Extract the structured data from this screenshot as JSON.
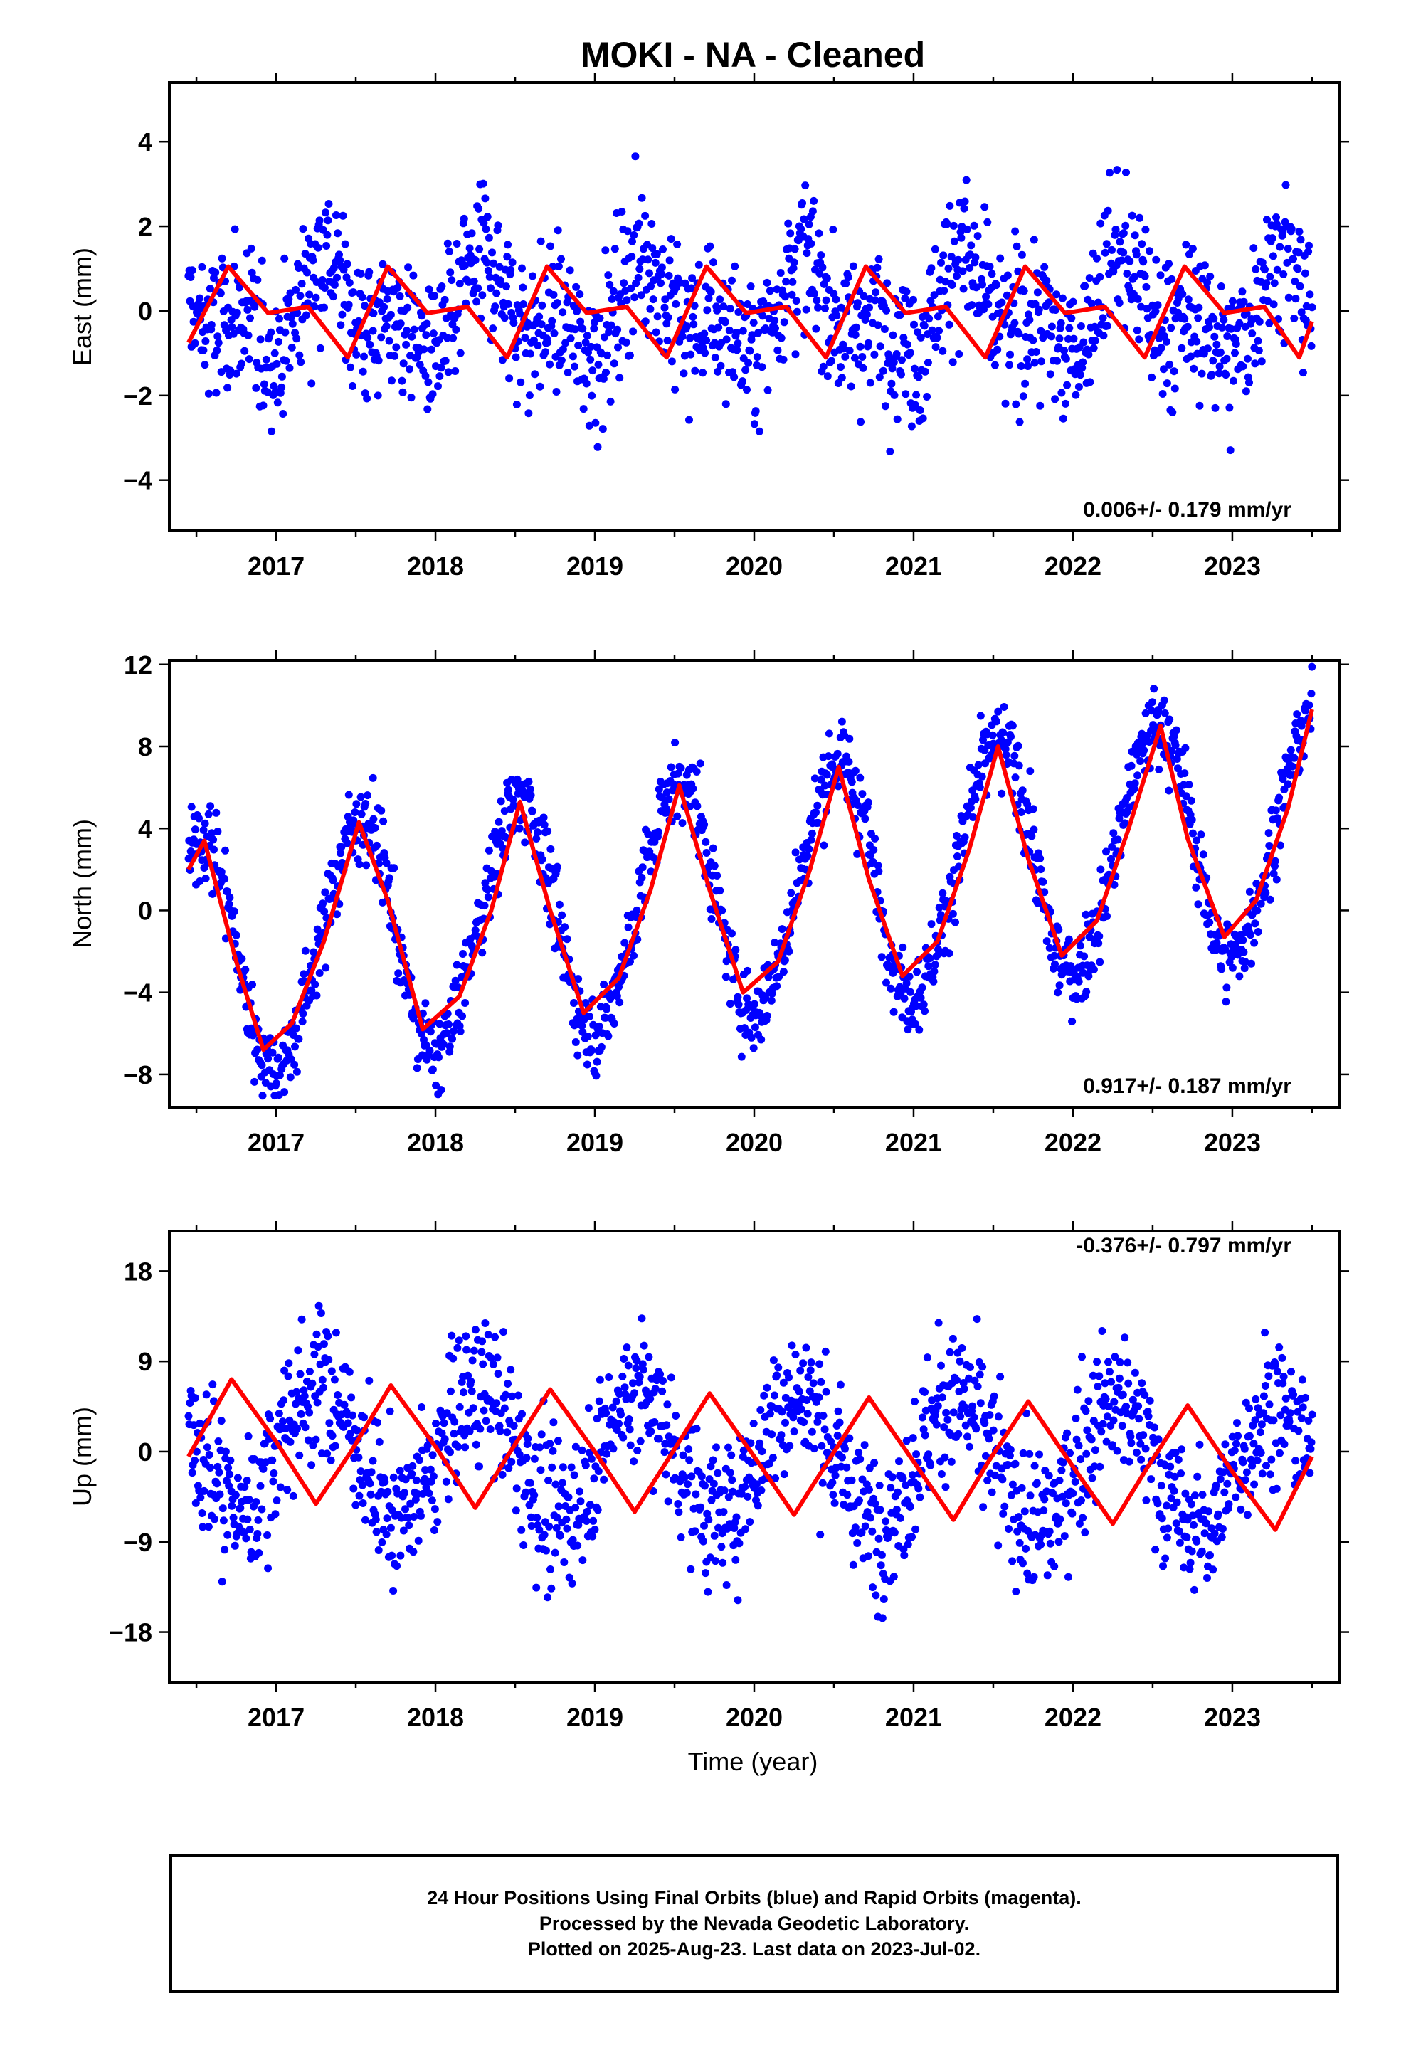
{
  "title": "MOKI  - NA - Cleaned",
  "xlabel": "Time (year)",
  "colors": {
    "final_orbits": "#0000ff",
    "model_fit": "#ff0000",
    "frame": "#000000"
  },
  "footer": {
    "line1": "24 Hour Positions Using Final Orbits (blue) and Rapid Orbits (magenta).",
    "line2": "Processed by the Nevada Geodetic Laboratory.",
    "line3": "Plotted on 2025-Aug-23. Last data on 2023-Jul-02."
  },
  "chart_data": [
    {
      "type": "scatter",
      "panel": "east",
      "ylabel": "East (mm)",
      "rate_text": "0.006+/- 0.179 mm/yr",
      "xlim": [
        2016.33,
        2023.67
      ],
      "ylim": [
        -5.2,
        5.4
      ],
      "xticks": [
        2017,
        2018,
        2019,
        2020,
        2021,
        2022,
        2023
      ],
      "yticks": [
        -4,
        -2,
        0,
        2,
        4
      ],
      "series": [
        {
          "role": "daily positions",
          "marker": "dot",
          "x_start": 2016.45,
          "x_end": 2023.5,
          "trend": {
            "ref_year": 2020.0,
            "offset": 0.0,
            "rate": 0.006
          },
          "annual": [
            0.7,
            -0.4
          ],
          "semiannual": [
            -0.2,
            -0.55
          ],
          "scatter_sd": 0.9
        },
        {
          "role": "model fit",
          "line": true,
          "points": [
            [
              2016.45,
              -0.75
            ],
            [
              2016.7,
              1.05
            ],
            [
              2016.95,
              -0.05
            ],
            [
              2017.2,
              0.1
            ],
            [
              2017.45,
              -1.1
            ],
            [
              2017.7,
              1.05
            ],
            [
              2017.95,
              -0.05
            ],
            [
              2018.2,
              0.1
            ],
            [
              2018.45,
              -1.1
            ],
            [
              2018.7,
              1.05
            ],
            [
              2018.95,
              -0.05
            ],
            [
              2019.2,
              0.1
            ],
            [
              2019.45,
              -1.1
            ],
            [
              2019.7,
              1.05
            ],
            [
              2019.95,
              -0.05
            ],
            [
              2020.2,
              0.1
            ],
            [
              2020.45,
              -1.1
            ],
            [
              2020.7,
              1.05
            ],
            [
              2020.95,
              -0.05
            ],
            [
              2021.2,
              0.1
            ],
            [
              2021.45,
              -1.1
            ],
            [
              2021.7,
              1.05
            ],
            [
              2021.95,
              -0.05
            ],
            [
              2022.2,
              0.1
            ],
            [
              2022.45,
              -1.1
            ],
            [
              2022.7,
              1.05
            ],
            [
              2022.95,
              -0.05
            ],
            [
              2023.2,
              0.1
            ],
            [
              2023.42,
              -1.1
            ],
            [
              2023.5,
              -0.25
            ]
          ]
        }
      ]
    },
    {
      "type": "scatter",
      "panel": "north",
      "ylabel": "North (mm)",
      "rate_text": "0.917+/- 0.187 mm/yr",
      "xlim": [
        2016.33,
        2023.67
      ],
      "ylim": [
        -9.6,
        12.2
      ],
      "xticks": [
        2017,
        2018,
        2019,
        2020,
        2021,
        2022,
        2023
      ],
      "yticks": [
        -8,
        -4,
        0,
        4,
        8,
        12
      ],
      "series": [
        {
          "role": "daily positions",
          "marker": "dot",
          "x_start": 2016.45,
          "x_end": 2023.5,
          "trend": {
            "ref_year": 2020.0,
            "offset": 0.8,
            "rate": 0.917
          },
          "annual": [
            -0.5,
            -5.8
          ],
          "semiannual": [
            0.4,
            0.0
          ],
          "scatter_sd": 1.0
        },
        {
          "role": "model fit",
          "line": true,
          "points": [
            [
              2016.45,
              2.0
            ],
            [
              2016.55,
              3.4
            ],
            [
              2016.75,
              -2.5
            ],
            [
              2016.92,
              -6.8
            ],
            [
              2017.1,
              -5.5
            ],
            [
              2017.3,
              -1.5
            ],
            [
              2017.52,
              4.3
            ],
            [
              2017.7,
              0.5
            ],
            [
              2017.92,
              -5.8
            ],
            [
              2018.15,
              -4.2
            ],
            [
              2018.35,
              0.0
            ],
            [
              2018.53,
              5.3
            ],
            [
              2018.72,
              0.0
            ],
            [
              2018.93,
              -5.0
            ],
            [
              2019.15,
              -3.3
            ],
            [
              2019.35,
              1.0
            ],
            [
              2019.53,
              6.1
            ],
            [
              2019.72,
              1.0
            ],
            [
              2019.93,
              -4.0
            ],
            [
              2020.15,
              -2.5
            ],
            [
              2020.35,
              2.0
            ],
            [
              2020.53,
              7.0
            ],
            [
              2020.72,
              1.5
            ],
            [
              2020.93,
              -3.2
            ],
            [
              2021.15,
              -1.5
            ],
            [
              2021.35,
              3.0
            ],
            [
              2021.53,
              8.0
            ],
            [
              2021.72,
              2.5
            ],
            [
              2021.93,
              -2.2
            ],
            [
              2022.15,
              -0.5
            ],
            [
              2022.35,
              4.0
            ],
            [
              2022.55,
              9.0
            ],
            [
              2022.72,
              3.5
            ],
            [
              2022.95,
              -1.3
            ],
            [
              2023.15,
              0.5
            ],
            [
              2023.35,
              5.0
            ],
            [
              2023.5,
              9.8
            ]
          ]
        }
      ]
    },
    {
      "type": "scatter",
      "panel": "up",
      "ylabel": "Up (mm)",
      "rate_text": "-0.376+/- 0.797 mm/yr",
      "xlim": [
        2016.33,
        2023.67
      ],
      "ylim": [
        -23,
        22
      ],
      "xticks": [
        2017,
        2018,
        2019,
        2020,
        2021,
        2022,
        2023
      ],
      "yticks": [
        -18,
        -9,
        0,
        9,
        18
      ],
      "series": [
        {
          "role": "daily positions",
          "marker": "dot",
          "x_start": 2016.45,
          "x_end": 2023.5,
          "trend": {
            "ref_year": 2020.0,
            "offset": -0.6,
            "rate": -0.376
          },
          "annual": [
            6.2,
            -0.8
          ],
          "semiannual": [
            0.0,
            0.0
          ],
          "scatter_sd": 3.6
        },
        {
          "role": "model fit",
          "line": true,
          "points": [
            [
              2016.45,
              -0.5
            ],
            [
              2016.72,
              7.2
            ],
            [
              2017.0,
              1.0
            ],
            [
              2017.25,
              -5.2
            ],
            [
              2017.47,
              0.0
            ],
            [
              2017.72,
              6.6
            ],
            [
              2018.0,
              0.5
            ],
            [
              2018.25,
              -5.6
            ],
            [
              2018.47,
              0.0
            ],
            [
              2018.72,
              6.2
            ],
            [
              2019.0,
              0.0
            ],
            [
              2019.25,
              -6.0
            ],
            [
              2019.47,
              -0.5
            ],
            [
              2019.72,
              5.8
            ],
            [
              2020.0,
              -0.5
            ],
            [
              2020.25,
              -6.3
            ],
            [
              2020.47,
              -0.8
            ],
            [
              2020.72,
              5.4
            ],
            [
              2021.0,
              -1.0
            ],
            [
              2021.25,
              -6.8
            ],
            [
              2021.47,
              -1.0
            ],
            [
              2021.72,
              5.0
            ],
            [
              2022.0,
              -1.5
            ],
            [
              2022.25,
              -7.2
            ],
            [
              2022.47,
              -1.5
            ],
            [
              2022.72,
              4.6
            ],
            [
              2023.0,
              -2.0
            ],
            [
              2023.27,
              -7.8
            ],
            [
              2023.5,
              -0.5
            ]
          ]
        }
      ]
    }
  ]
}
